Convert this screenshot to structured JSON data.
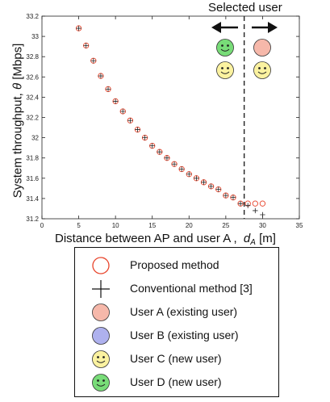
{
  "header": {
    "selected_user_label": "Selected user"
  },
  "axes": {
    "xlabel_text": "Distance between AP and user A ,",
    "xlabel_symbol": "d",
    "xlabel_sub": "A",
    "xlabel_unit": "[m]",
    "ylabel_text": "System throughput,",
    "ylabel_symbol": "θ",
    "ylabel_unit": "[Mbps]"
  },
  "chart_data": {
    "type": "scatter",
    "xlim": [
      0,
      35
    ],
    "ylim": [
      31.2,
      33.2
    ],
    "xticks": [
      0,
      5,
      10,
      15,
      20,
      25,
      30,
      35
    ],
    "yticks": [
      31.2,
      31.4,
      31.6,
      31.8,
      32,
      32.2,
      32.4,
      32.6,
      32.8,
      33,
      33.2
    ],
    "grid": false,
    "selected_distance": 27.5,
    "series": [
      {
        "name": "Proposed method",
        "marker": "circle",
        "color": "#e8452c",
        "x": [
          5,
          6,
          7,
          8,
          9,
          10,
          11,
          12,
          13,
          14,
          15,
          16,
          17,
          18,
          19,
          20,
          21,
          22,
          23,
          24,
          25,
          26,
          27,
          28,
          29,
          30
        ],
        "y": [
          33.08,
          32.91,
          32.76,
          32.61,
          32.48,
          32.36,
          32.26,
          32.17,
          32.08,
          32.0,
          31.92,
          31.86,
          31.8,
          31.74,
          31.69,
          31.64,
          31.6,
          31.56,
          31.52,
          31.49,
          31.43,
          31.41,
          31.35,
          31.35,
          31.35,
          31.35
        ]
      },
      {
        "name": "Conventional method [3]",
        "marker": "plus",
        "color": "#222222",
        "x": [
          5,
          6,
          7,
          8,
          9,
          10,
          11,
          12,
          13,
          14,
          15,
          16,
          17,
          18,
          19,
          20,
          21,
          22,
          23,
          24,
          25,
          26,
          27,
          28,
          29,
          30
        ],
        "y": [
          33.08,
          32.91,
          32.76,
          32.61,
          32.48,
          32.36,
          32.26,
          32.17,
          32.08,
          32.0,
          31.92,
          31.86,
          31.8,
          31.74,
          31.69,
          31.64,
          31.6,
          31.56,
          31.52,
          31.49,
          31.43,
          31.41,
          31.35,
          31.33,
          31.28,
          31.24
        ]
      }
    ]
  },
  "legend": [
    {
      "label": "Proposed method",
      "symbol": "open-circle",
      "color": "#e8452c"
    },
    {
      "label": "Conventional method [3]",
      "symbol": "plus",
      "color": "#111111"
    },
    {
      "label": "User A (existing user)",
      "symbol": "filled-circle",
      "color": "#f6b8aa"
    },
    {
      "label": "User B (existing user)",
      "symbol": "filled-circle",
      "color": "#aeb1ee"
    },
    {
      "label": "User C (new user)",
      "symbol": "smiley",
      "color": "#fbf2a0"
    },
    {
      "label": "User D (new user)",
      "symbol": "smiley",
      "color": "#78dc78"
    }
  ],
  "colors": {
    "user_a": "#f6b8aa",
    "user_b": "#aeb1ee",
    "user_c": "#fbf2a0",
    "user_d": "#78dc78"
  },
  "icons": [
    "arrow-left-icon",
    "arrow-right-icon",
    "user-d-smiley-icon",
    "user-c-smiley-icon",
    "user-a-circle-icon"
  ]
}
